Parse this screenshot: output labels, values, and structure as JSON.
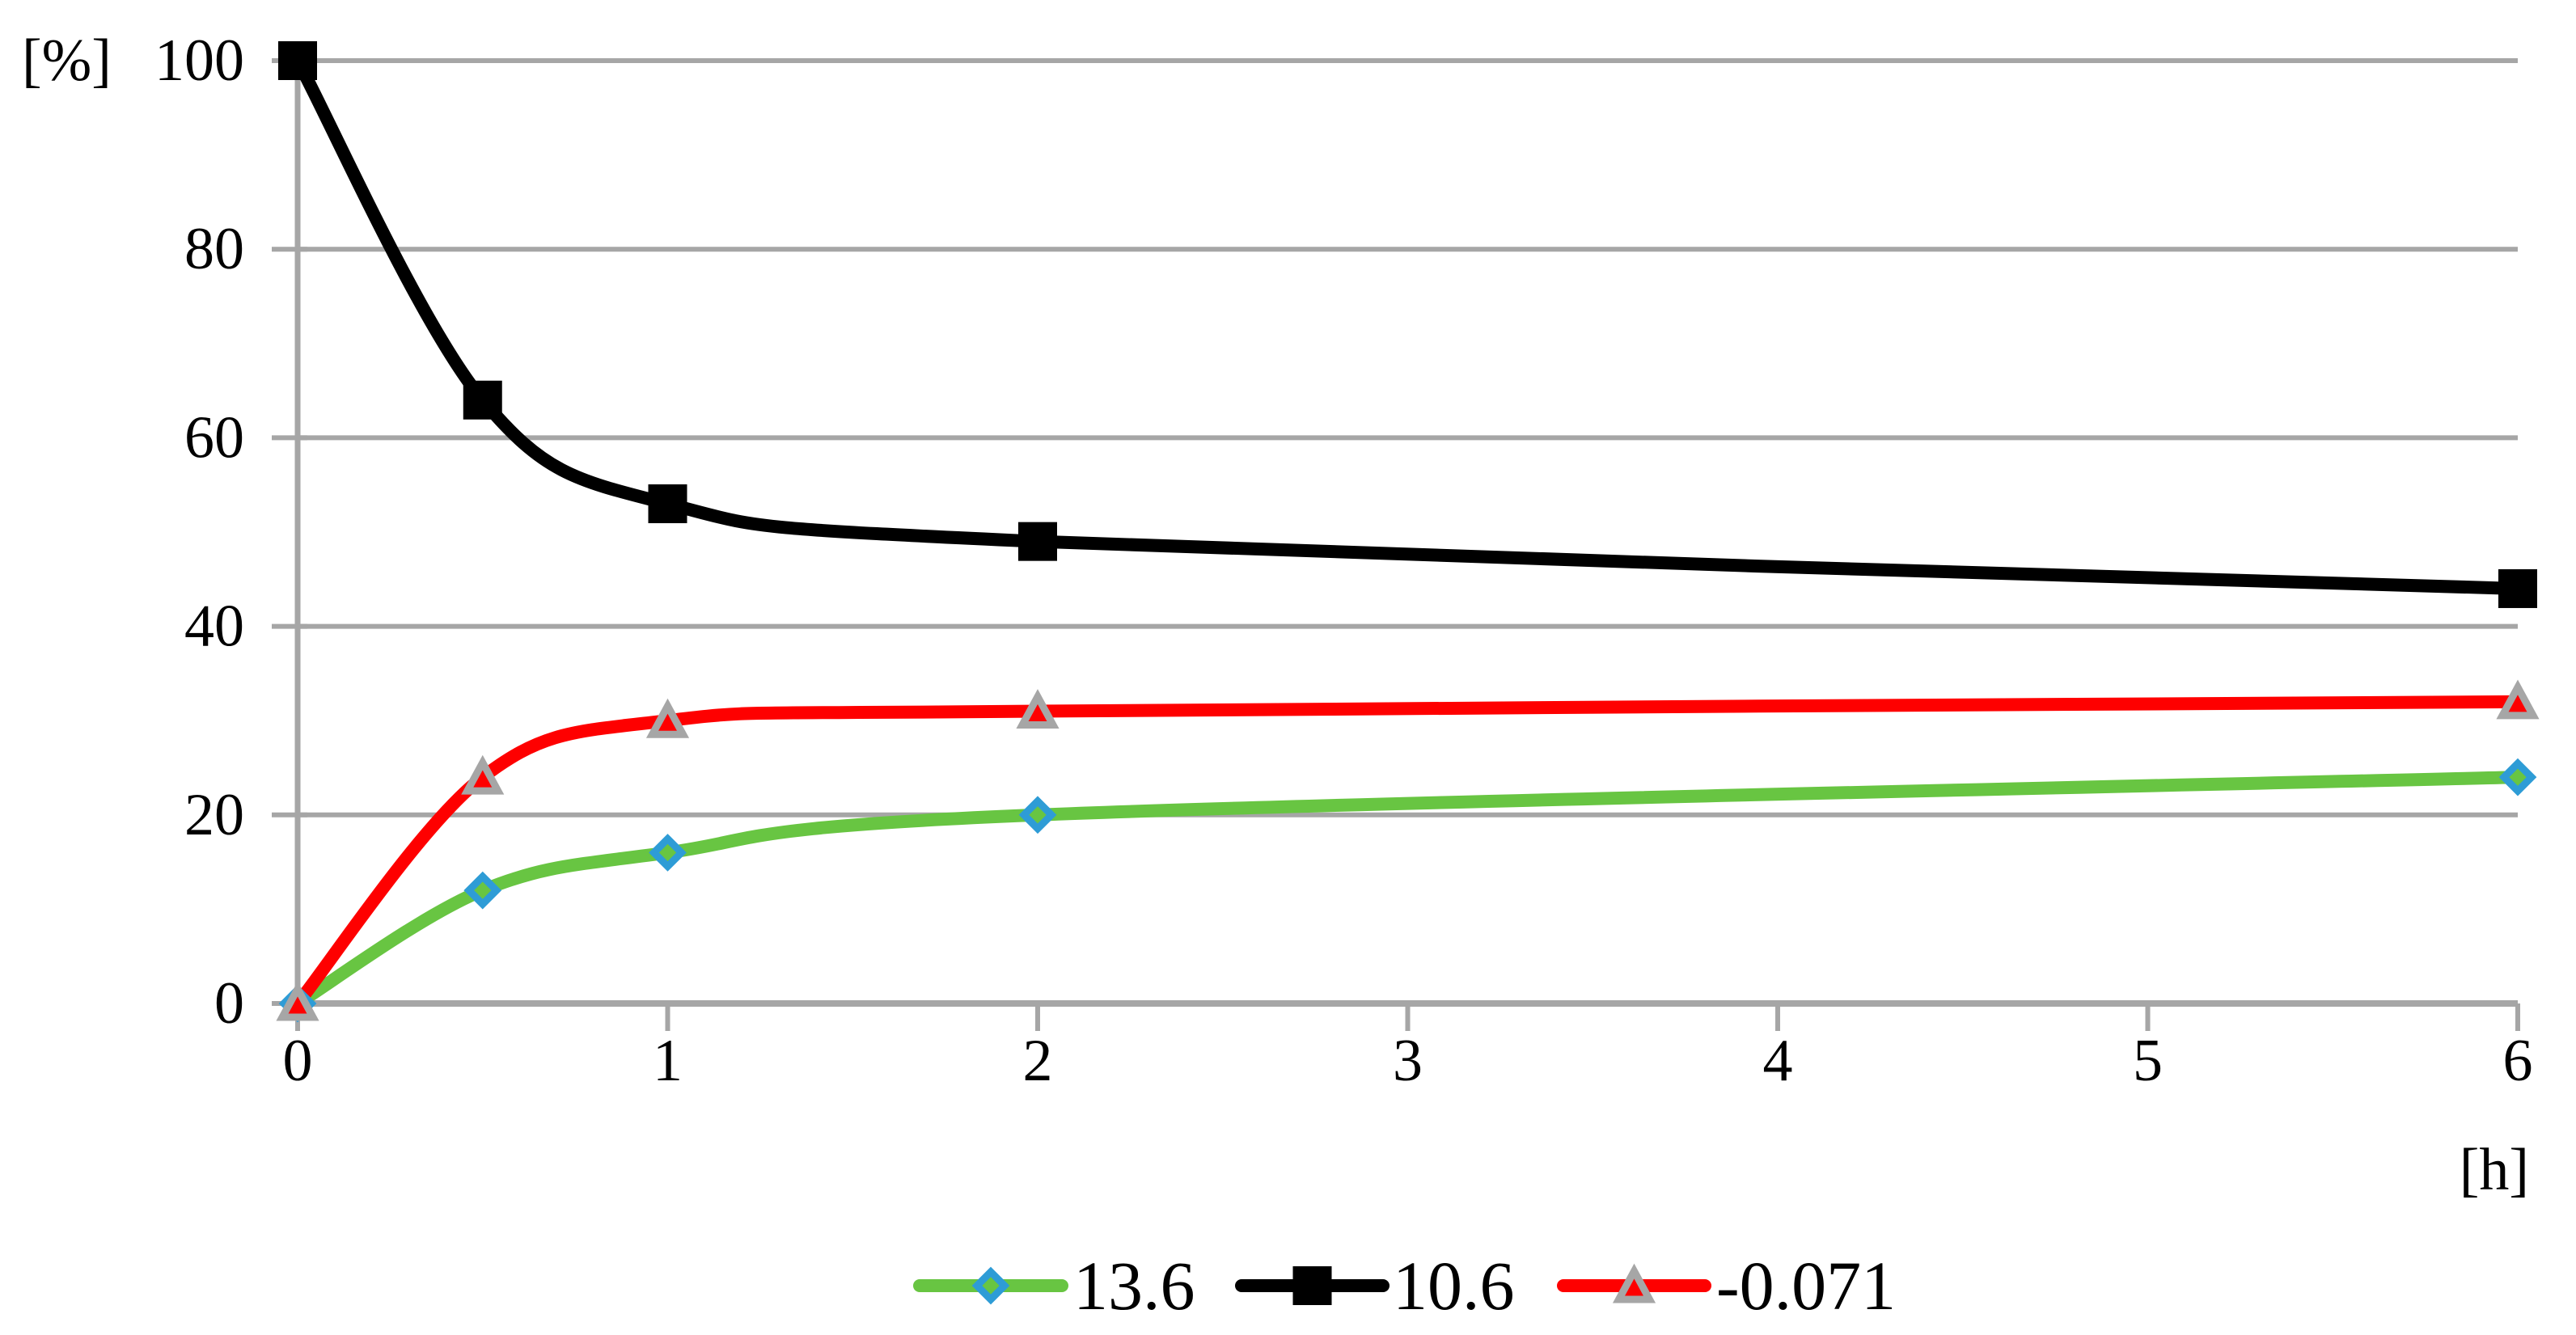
{
  "chart_data": {
    "type": "line",
    "title": "",
    "xlabel": "[h]",
    "ylabel": "[%]",
    "x": [
      0,
      0.5,
      1,
      2,
      6
    ],
    "x_ticks": [
      0,
      1,
      2,
      3,
      4,
      5,
      6
    ],
    "y_ticks": [
      0,
      20,
      40,
      60,
      80,
      100
    ],
    "xlim": [
      0,
      6
    ],
    "ylim": [
      0,
      100
    ],
    "grid": "horizontal-only",
    "legend_position": "bottom-center",
    "line_style": "smooth",
    "series": [
      {
        "name": "13.6",
        "color": "#68C542",
        "marker": "diamond",
        "marker_fill": "#68C542",
        "marker_stroke": "#2E9CD6",
        "values": [
          0,
          12,
          16,
          20,
          24
        ]
      },
      {
        "name": "10.6",
        "color": "#000000",
        "marker": "square",
        "marker_fill": "#000000",
        "marker_stroke": "#000000",
        "values": [
          100,
          64,
          53,
          49,
          44
        ]
      },
      {
        "name": "-0.071",
        "color": "#FE0000",
        "marker": "triangle",
        "marker_fill": "#FE0000",
        "marker_stroke": "#A6A6A6",
        "values": [
          0,
          24,
          30,
          31,
          32
        ]
      }
    ]
  },
  "colors": {
    "grid": "#A6A6A6",
    "axis": "#A6A6A6",
    "tick": "#A6A6A6",
    "background": "#FFFFFF",
    "text": "#000000"
  }
}
